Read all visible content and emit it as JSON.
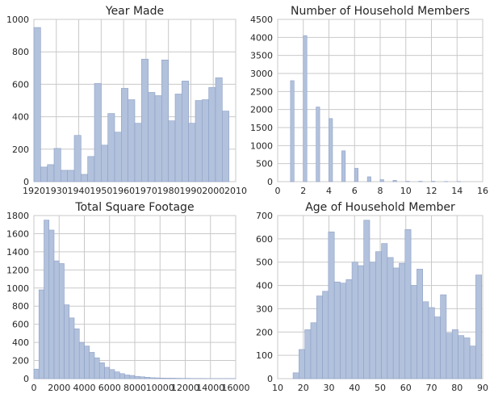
{
  "chart_data": [
    {
      "type": "bar",
      "title": "Year Made",
      "xlim": [
        1920,
        2010
      ],
      "ylim": [
        0,
        1000
      ],
      "xticks": [
        1920,
        1930,
        1940,
        1950,
        1960,
        1970,
        1980,
        1990,
        2000,
        2010
      ],
      "yticks": [
        0,
        200,
        400,
        600,
        800,
        1000
      ],
      "bin_start": 1920,
      "bin_width": 3,
      "values": [
        950,
        90,
        105,
        205,
        70,
        70,
        285,
        45,
        155,
        605,
        225,
        420,
        305,
        575,
        505,
        360,
        755,
        550,
        530,
        750,
        375,
        540,
        620,
        360,
        500,
        505,
        580,
        640,
        435,
        0
      ]
    },
    {
      "type": "bar",
      "title": "Number of Household Members",
      "xlim": [
        0,
        16
      ],
      "ylim": [
        0,
        4500
      ],
      "xticks": [
        0,
        2,
        4,
        6,
        8,
        10,
        12,
        14,
        16
      ],
      "yticks": [
        0,
        500,
        1000,
        1500,
        2000,
        2500,
        3000,
        3500,
        4000,
        4500
      ],
      "bin_start": 1,
      "bin_width": 0.28,
      "bin_step": 1,
      "values": [
        2800,
        4050,
        2070,
        1750,
        855,
        370,
        135,
        55,
        35,
        10,
        10,
        10,
        5,
        5
      ]
    },
    {
      "type": "bar",
      "title": "Total Square Footage",
      "xlim": [
        0,
        16000
      ],
      "ylim": [
        0,
        1800
      ],
      "xticks": [
        0,
        2000,
        4000,
        6000,
        8000,
        10000,
        12000,
        14000,
        16000
      ],
      "yticks": [
        0,
        200,
        400,
        600,
        800,
        1000,
        1200,
        1400,
        1600,
        1800
      ],
      "bin_start": 0,
      "bin_width": 400,
      "values": [
        105,
        980,
        1750,
        1640,
        1300,
        1270,
        815,
        670,
        550,
        400,
        360,
        290,
        230,
        175,
        125,
        100,
        75,
        55,
        40,
        35,
        25,
        20,
        15,
        10,
        8,
        6,
        5,
        5,
        4,
        3,
        3,
        2,
        2,
        2,
        1,
        1,
        1,
        1,
        1,
        1
      ]
    },
    {
      "type": "bar",
      "title": "Age of Household Member",
      "xlim": [
        10,
        90
      ],
      "ylim": [
        0,
        700
      ],
      "xticks": [
        10,
        20,
        30,
        40,
        50,
        60,
        70,
        80,
        90
      ],
      "yticks": [
        0,
        100,
        200,
        300,
        400,
        500,
        600,
        700
      ],
      "bin_start": 16,
      "bin_width": 2.3,
      "values": [
        25,
        125,
        210,
        240,
        355,
        375,
        630,
        415,
        410,
        425,
        500,
        485,
        680,
        500,
        545,
        580,
        520,
        475,
        495,
        640,
        400,
        470,
        330,
        305,
        265,
        360,
        195,
        210,
        185,
        175,
        140,
        445
      ]
    }
  ]
}
